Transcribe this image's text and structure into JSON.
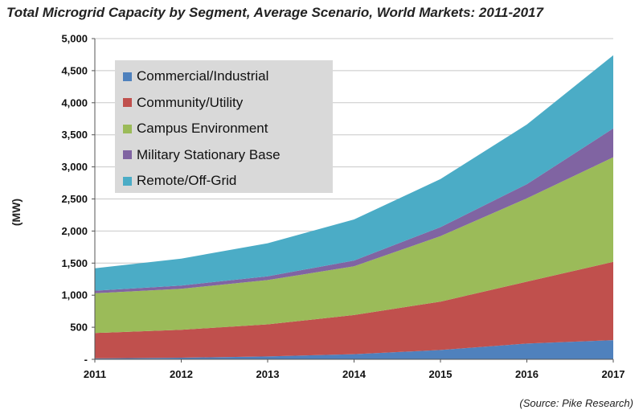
{
  "title": "Total Microgrid Capacity by Segment, Average Scenario, World Markets:  2011-2017",
  "source": "(Source:  Pike Research)",
  "chart_data": {
    "type": "area",
    "stacked": true,
    "title": "Total Microgrid Capacity by Segment, Average Scenario, World Markets:  2011-2017",
    "xlabel": "",
    "ylabel": "(MW)",
    "categories": [
      "2011",
      "2012",
      "2013",
      "2014",
      "2015",
      "2016",
      "2017"
    ],
    "ylim": [
      0,
      5000
    ],
    "yticks": [
      "-",
      "500",
      "1,000",
      "1,500",
      "2,000",
      "2,500",
      "3,000",
      "3,500",
      "4,000",
      "4,500",
      "5,000"
    ],
    "ytick_values": [
      0,
      500,
      1000,
      1500,
      2000,
      2500,
      3000,
      3500,
      4000,
      4500,
      5000
    ],
    "grid": true,
    "legend_position": "top-left",
    "series": [
      {
        "name": "Commercial/Industrial",
        "color": "#4f81bd",
        "values": [
          15,
          25,
          45,
          80,
          145,
          245,
          300
        ]
      },
      {
        "name": "Community/Utility",
        "color": "#c0504d",
        "values": [
          395,
          435,
          500,
          610,
          755,
          965,
          1220
        ]
      },
      {
        "name": "Campus Environment",
        "color": "#9bbb59",
        "values": [
          620,
          640,
          690,
          760,
          1020,
          1300,
          1630
        ]
      },
      {
        "name": "Military Stationary Base",
        "color": "#8064a2",
        "values": [
          40,
          50,
          60,
          90,
          140,
          220,
          450
        ]
      },
      {
        "name": "Remote/Off-Grid",
        "color": "#4bacc6",
        "values": [
          350,
          420,
          515,
          640,
          750,
          930,
          1140
        ]
      }
    ]
  }
}
